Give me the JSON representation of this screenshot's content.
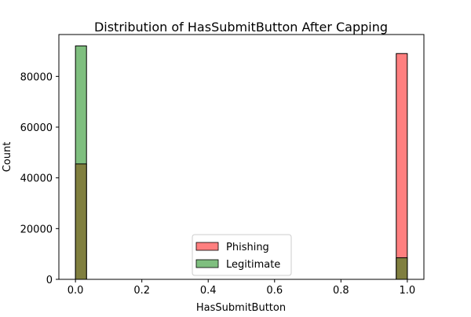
{
  "chart_data": {
    "type": "bar",
    "title": "Distribution of HasSubmitButton After Capping",
    "xlabel": "HasSubmitButton",
    "ylabel": "Count",
    "xlim": [
      -0.05,
      1.05
    ],
    "ylim": [
      0,
      96500
    ],
    "x_ticks": [
      "0.0",
      "0.2",
      "0.4",
      "0.6",
      "0.8",
      "1.0"
    ],
    "x_tick_values": [
      0.0,
      0.2,
      0.4,
      0.6,
      0.8,
      1.0
    ],
    "y_ticks": [
      "0",
      "20000",
      "40000",
      "60000",
      "80000"
    ],
    "y_tick_values": [
      0,
      20000,
      40000,
      60000,
      80000
    ],
    "bin_width": 0.0333,
    "grid": false,
    "legend_position": "lower center",
    "series": [
      {
        "name": "Phishing",
        "color": "#ff7f7f",
        "bins": [
          {
            "x0": 0.0,
            "x1": 0.0333,
            "count": 45500
          },
          {
            "x0": 0.9667,
            "x1": 1.0,
            "count": 89000
          }
        ]
      },
      {
        "name": "Legitimate",
        "color": "#7fbf7f",
        "bins": [
          {
            "x0": 0.0,
            "x1": 0.0333,
            "count": 92000
          },
          {
            "x0": 0.9667,
            "x1": 1.0,
            "count": 8500
          }
        ]
      }
    ],
    "overlap_color": "#807f3f"
  }
}
